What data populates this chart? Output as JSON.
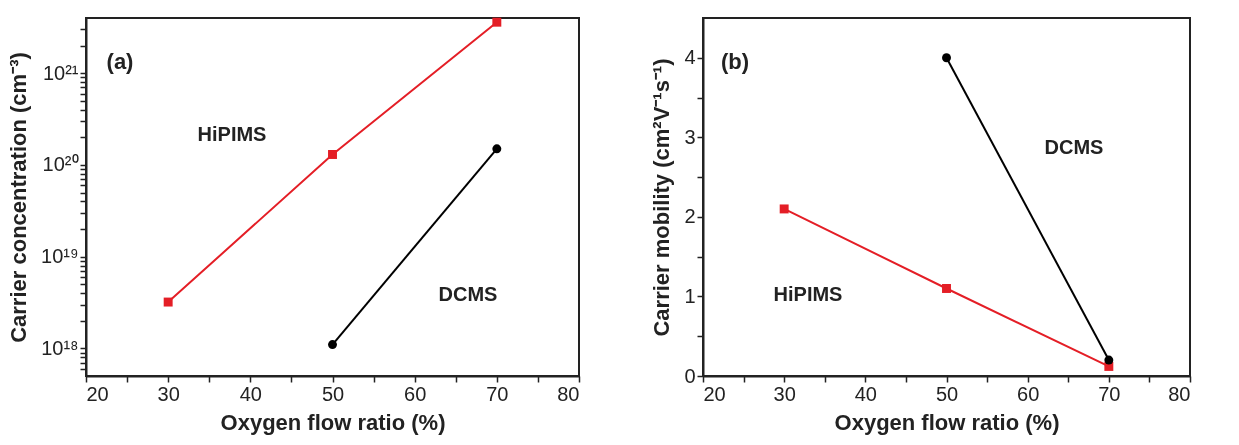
{
  "chart_data": [
    {
      "type": "line",
      "xlabel": "Oxygen flow ratio (%)",
      "ylabel": "Carrier concentration (cm⁻³)",
      "annotations": [
        "(a)"
      ],
      "log": true,
      "xlim": [
        20,
        80
      ],
      "xticks": [
        20,
        {
          "value": 25,
          "label": null
        },
        30,
        {
          "value": 35,
          "label": null
        },
        40,
        {
          "value": 45,
          "label": null
        },
        50,
        {
          "value": 55,
          "label": null
        },
        60,
        {
          "value": 65,
          "label": null
        },
        70,
        {
          "value": 75,
          "label": null
        },
        80
      ],
      "ylim": [
        5e+17,
        4e+21
      ],
      "yticks": [
        {
          "value": 6e+17,
          "label": null
        },
        {
          "value": 7e+17,
          "label": null
        },
        {
          "value": 8e+17,
          "label": null
        },
        {
          "value": 9e+17,
          "label": null
        },
        {
          "value": 1e+18,
          "label": "10¹⁸"
        },
        {
          "value": 2e+18,
          "label": null
        },
        {
          "value": 3e+18,
          "label": null
        },
        {
          "value": 4e+18,
          "label": null
        },
        {
          "value": 5e+18,
          "label": null
        },
        {
          "value": 6e+18,
          "label": null
        },
        {
          "value": 7e+18,
          "label": null
        },
        {
          "value": 8e+18,
          "label": null
        },
        {
          "value": 9e+18,
          "label": null
        },
        {
          "value": 1e+19,
          "label": "10¹⁹"
        },
        {
          "value": 2e+19,
          "label": null
        },
        {
          "value": 3e+19,
          "label": null
        },
        {
          "value": 4e+19,
          "label": null
        },
        {
          "value": 5e+19,
          "label": null
        },
        {
          "value": 6e+19,
          "label": null
        },
        {
          "value": 7e+19,
          "label": null
        },
        {
          "value": 8e+19,
          "label": null
        },
        {
          "value": 9e+19,
          "label": null
        },
        {
          "value": 1e+20,
          "label": "10²⁰"
        },
        {
          "value": 2e+20,
          "label": null
        },
        {
          "value": 3e+20,
          "label": null
        },
        {
          "value": 4e+20,
          "label": null
        },
        {
          "value": 5e+20,
          "label": null
        },
        {
          "value": 6e+20,
          "label": null
        },
        {
          "value": 7e+20,
          "label": null
        },
        {
          "value": 8e+20,
          "label": null
        },
        {
          "value": 9e+20,
          "label": null
        },
        {
          "value": 1e+21,
          "label": "10²¹"
        },
        {
          "value": 2e+21,
          "label": null
        },
        {
          "value": 3e+21,
          "label": null
        }
      ],
      "series": [
        {
          "name": "HiPIMS",
          "color": "#e41e26",
          "marker": "square",
          "x": [
            30,
            50,
            70
          ],
          "values": [
            3.2e+18,
            1.3e+20,
            3.6e+21
          ]
        },
        {
          "name": "DCMS",
          "color": "#000000",
          "marker": "circle",
          "x": [
            50,
            70
          ],
          "values": [
            1.1e+18,
            1.5e+20
          ]
        }
      ]
    },
    {
      "type": "line",
      "xlabel": "Oxygen flow ratio (%)",
      "ylabel": "Carrier mobility (cm²V⁻¹s⁻¹)",
      "annotations": [
        "(b)"
      ],
      "xlim": [
        20,
        80
      ],
      "xticks": [
        20,
        {
          "value": 25,
          "label": null
        },
        30,
        {
          "value": 35,
          "label": null
        },
        40,
        {
          "value": 45,
          "label": null
        },
        50,
        {
          "value": 55,
          "label": null
        },
        60,
        {
          "value": 65,
          "label": null
        },
        70,
        {
          "value": 75,
          "label": null
        },
        80
      ],
      "ylim": [
        0,
        4.5
      ],
      "yticks": [
        0,
        {
          "value": 0.5,
          "label": null
        },
        1,
        {
          "value": 1.5,
          "label": null
        },
        2,
        {
          "value": 2.5,
          "label": null
        },
        3,
        {
          "value": 3.5,
          "label": null
        },
        4
      ],
      "series": [
        {
          "name": "HiPIMS",
          "color": "#e41e26",
          "marker": "square",
          "x": [
            30,
            50,
            70
          ],
          "values": [
            2.1,
            1.1,
            0.12
          ]
        },
        {
          "name": "DCMS",
          "color": "#000000",
          "marker": "circle",
          "x": [
            50,
            70
          ],
          "values": [
            4.0,
            0.2
          ]
        }
      ]
    }
  ]
}
